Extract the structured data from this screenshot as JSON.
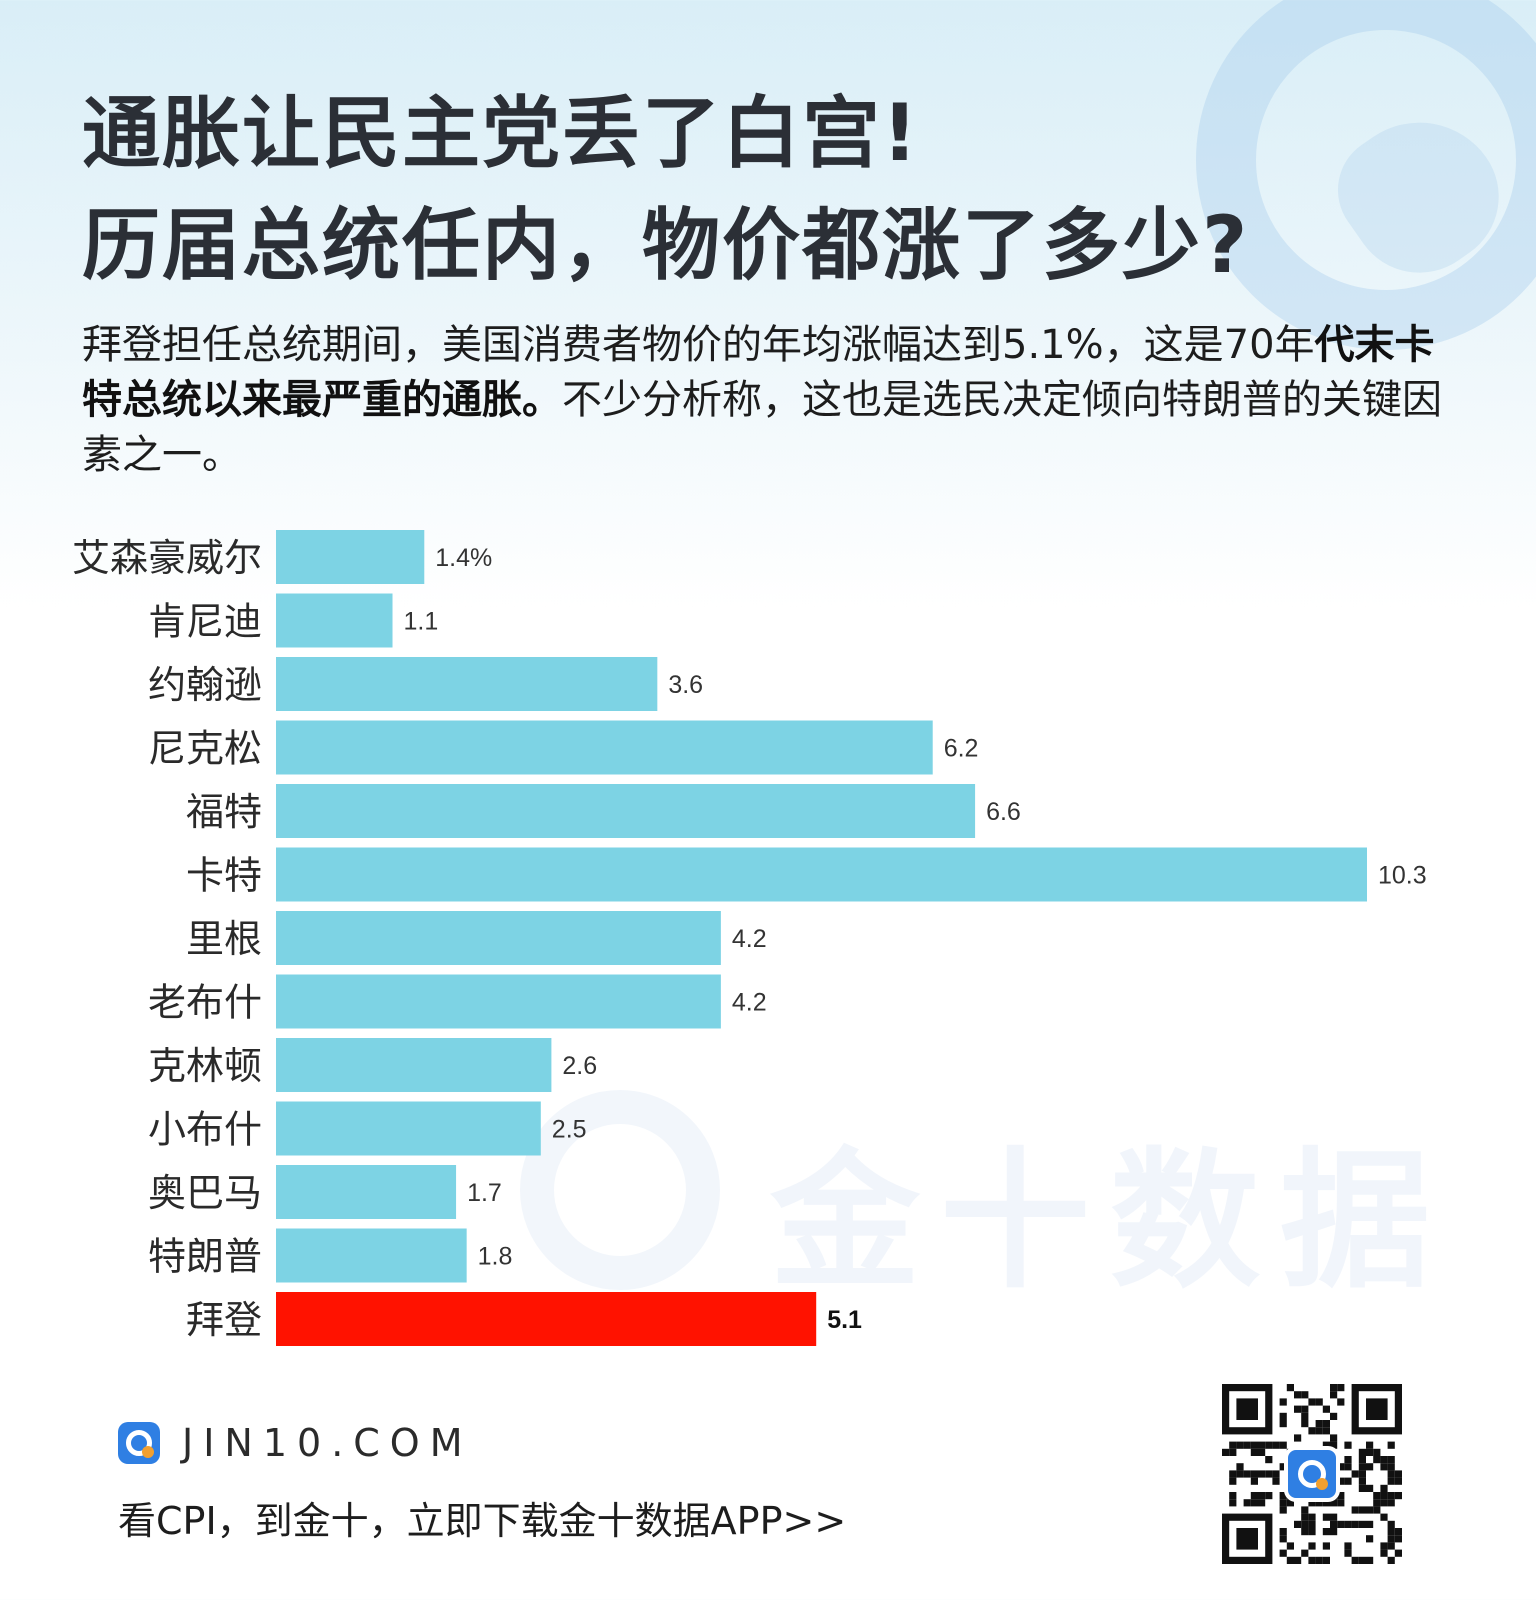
{
  "header": {
    "title_line1": "通胀让民主党丢了白宫!",
    "title_line2": "历届总统任内，物价都涨了多少?"
  },
  "intro": {
    "part1": "拜登担任总统期间，美国消费者物价的年均涨幅达到5.1%，这是70年",
    "bold": "代末卡特总统以来最严重的通胀。",
    "part2": "不少分析称，这也是选民决定倾向特朗普的关键因素之一。"
  },
  "chart_data": {
    "type": "bar",
    "orientation": "horizontal",
    "categories": [
      "艾森豪威尔",
      "肯尼迪",
      "约翰逊",
      "尼克松",
      "福特",
      "卡特",
      "里根",
      "老布什",
      "克林顿",
      "小布什",
      "奥巴马",
      "特朗普",
      "拜登"
    ],
    "values": [
      1.4,
      1.1,
      3.6,
      6.2,
      6.6,
      10.3,
      4.2,
      4.2,
      2.6,
      2.5,
      1.7,
      1.8,
      5.1
    ],
    "value_labels": [
      "1.4%",
      "1.1",
      "3.6",
      "6.2",
      "6.6",
      "10.3",
      "4.2",
      "4.2",
      "2.6",
      "2.5",
      "1.7",
      "1.8",
      "5.1"
    ],
    "highlight_index": 12,
    "colors": {
      "bar": "#7dd3e4",
      "highlight": "#ff1200",
      "label": "#333333"
    },
    "xlim": [
      0,
      10.3
    ],
    "grid": false,
    "title": "",
    "xlabel": "",
    "ylabel": ""
  },
  "watermark": {
    "text": "金十数据"
  },
  "footer": {
    "brand": "JIN10.COM",
    "cta": "看CPI，到金十，立即下载金十数据APP>>"
  },
  "icons": {
    "brand": "jin10-logo-icon",
    "qr": "qr-code"
  },
  "colors": {
    "brand_blue": "#2f7fe3",
    "brand_orange": "#f2a030",
    "title": "#2b2f36"
  }
}
